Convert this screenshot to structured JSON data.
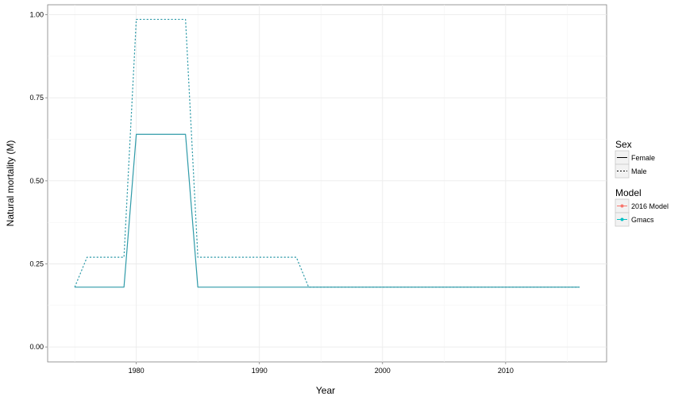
{
  "chart_data": {
    "type": "line",
    "xlabel": "Year",
    "ylabel": "Natural mortality (M)",
    "xlim": [
      1972.8,
      2018.2
    ],
    "ylim": [
      -0.045,
      1.03
    ],
    "x_ticks": [
      1980,
      1990,
      2000,
      2010
    ],
    "x_tick_labels": [
      "1980",
      "1990",
      "2000",
      "2010"
    ],
    "y_ticks": [
      0.0,
      0.25,
      0.5,
      0.75,
      1.0
    ],
    "y_tick_labels": [
      "0.00",
      "0.25",
      "0.50",
      "0.75",
      "1.00"
    ],
    "grid": true,
    "legend_position": "right",
    "legends": [
      {
        "title": "Sex",
        "items": [
          {
            "label": "Female",
            "linetype": "solid"
          },
          {
            "label": "Male",
            "linetype": "dotted"
          }
        ]
      },
      {
        "title": "Model",
        "items": [
          {
            "label": "2016 Model",
            "color": "#F8766D"
          },
          {
            "label": "Gmacs",
            "color": "#00BFC4"
          }
        ]
      }
    ],
    "series": [
      {
        "sex": "Female",
        "linetype": "solid",
        "color": "#2E9AA8",
        "x": [
          1975,
          1979,
          1980,
          1984,
          1985,
          2016
        ],
        "y": [
          0.18,
          0.18,
          0.64,
          0.64,
          0.18,
          0.18
        ]
      },
      {
        "sex": "Male",
        "linetype": "dotted",
        "color": "#2E9AA8",
        "x": [
          1975,
          1976,
          1979,
          1980,
          1984,
          1985,
          1993,
          1994,
          2016
        ],
        "y": [
          0.18,
          0.27,
          0.27,
          0.986,
          0.986,
          0.27,
          0.27,
          0.18,
          0.18
        ]
      }
    ]
  }
}
